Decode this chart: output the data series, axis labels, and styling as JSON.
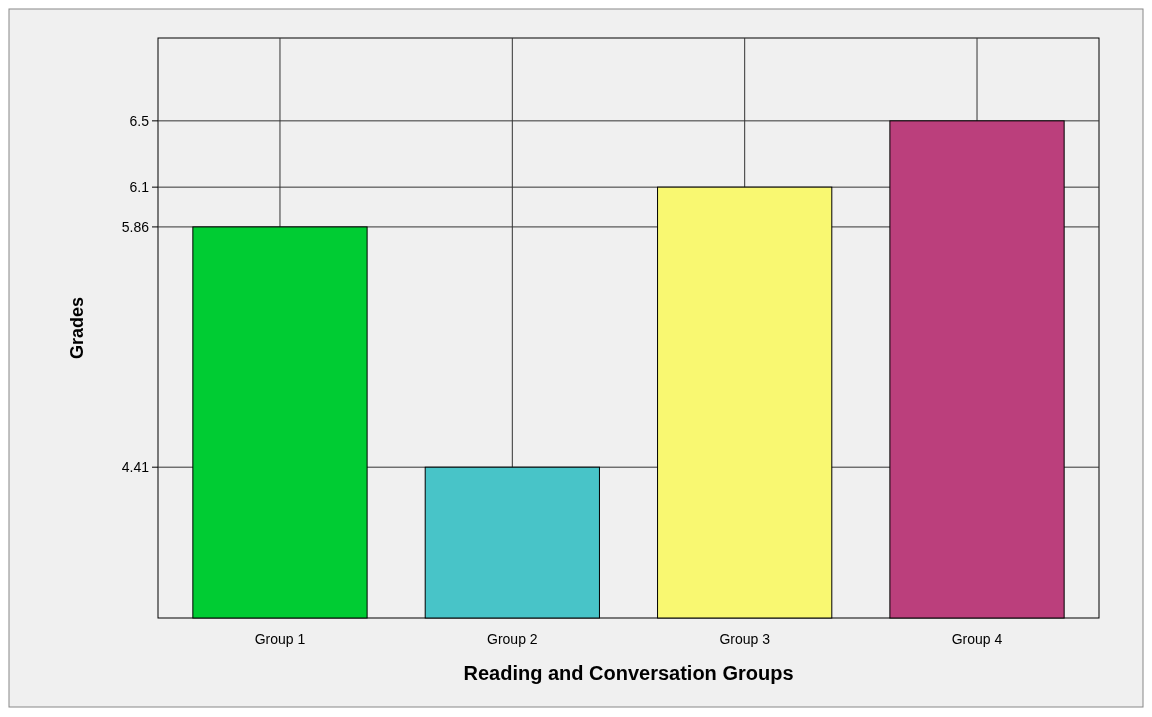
{
  "chart_data": {
    "type": "bar",
    "xlabel": "Reading and Conversation Groups",
    "ylabel": "Grades",
    "categories": [
      "Group 1",
      "Group 2",
      "Group 3",
      "Group 4"
    ],
    "values": [
      5.86,
      4.41,
      6.1,
      6.5
    ],
    "colors": [
      "#00cc33",
      "#48c4c8",
      "#f9f871",
      "#bb3f7c"
    ],
    "ylim": [
      3.5,
      7
    ],
    "yticks": [
      4.41,
      5.86,
      6.1,
      6.5
    ],
    "grid": true
  }
}
